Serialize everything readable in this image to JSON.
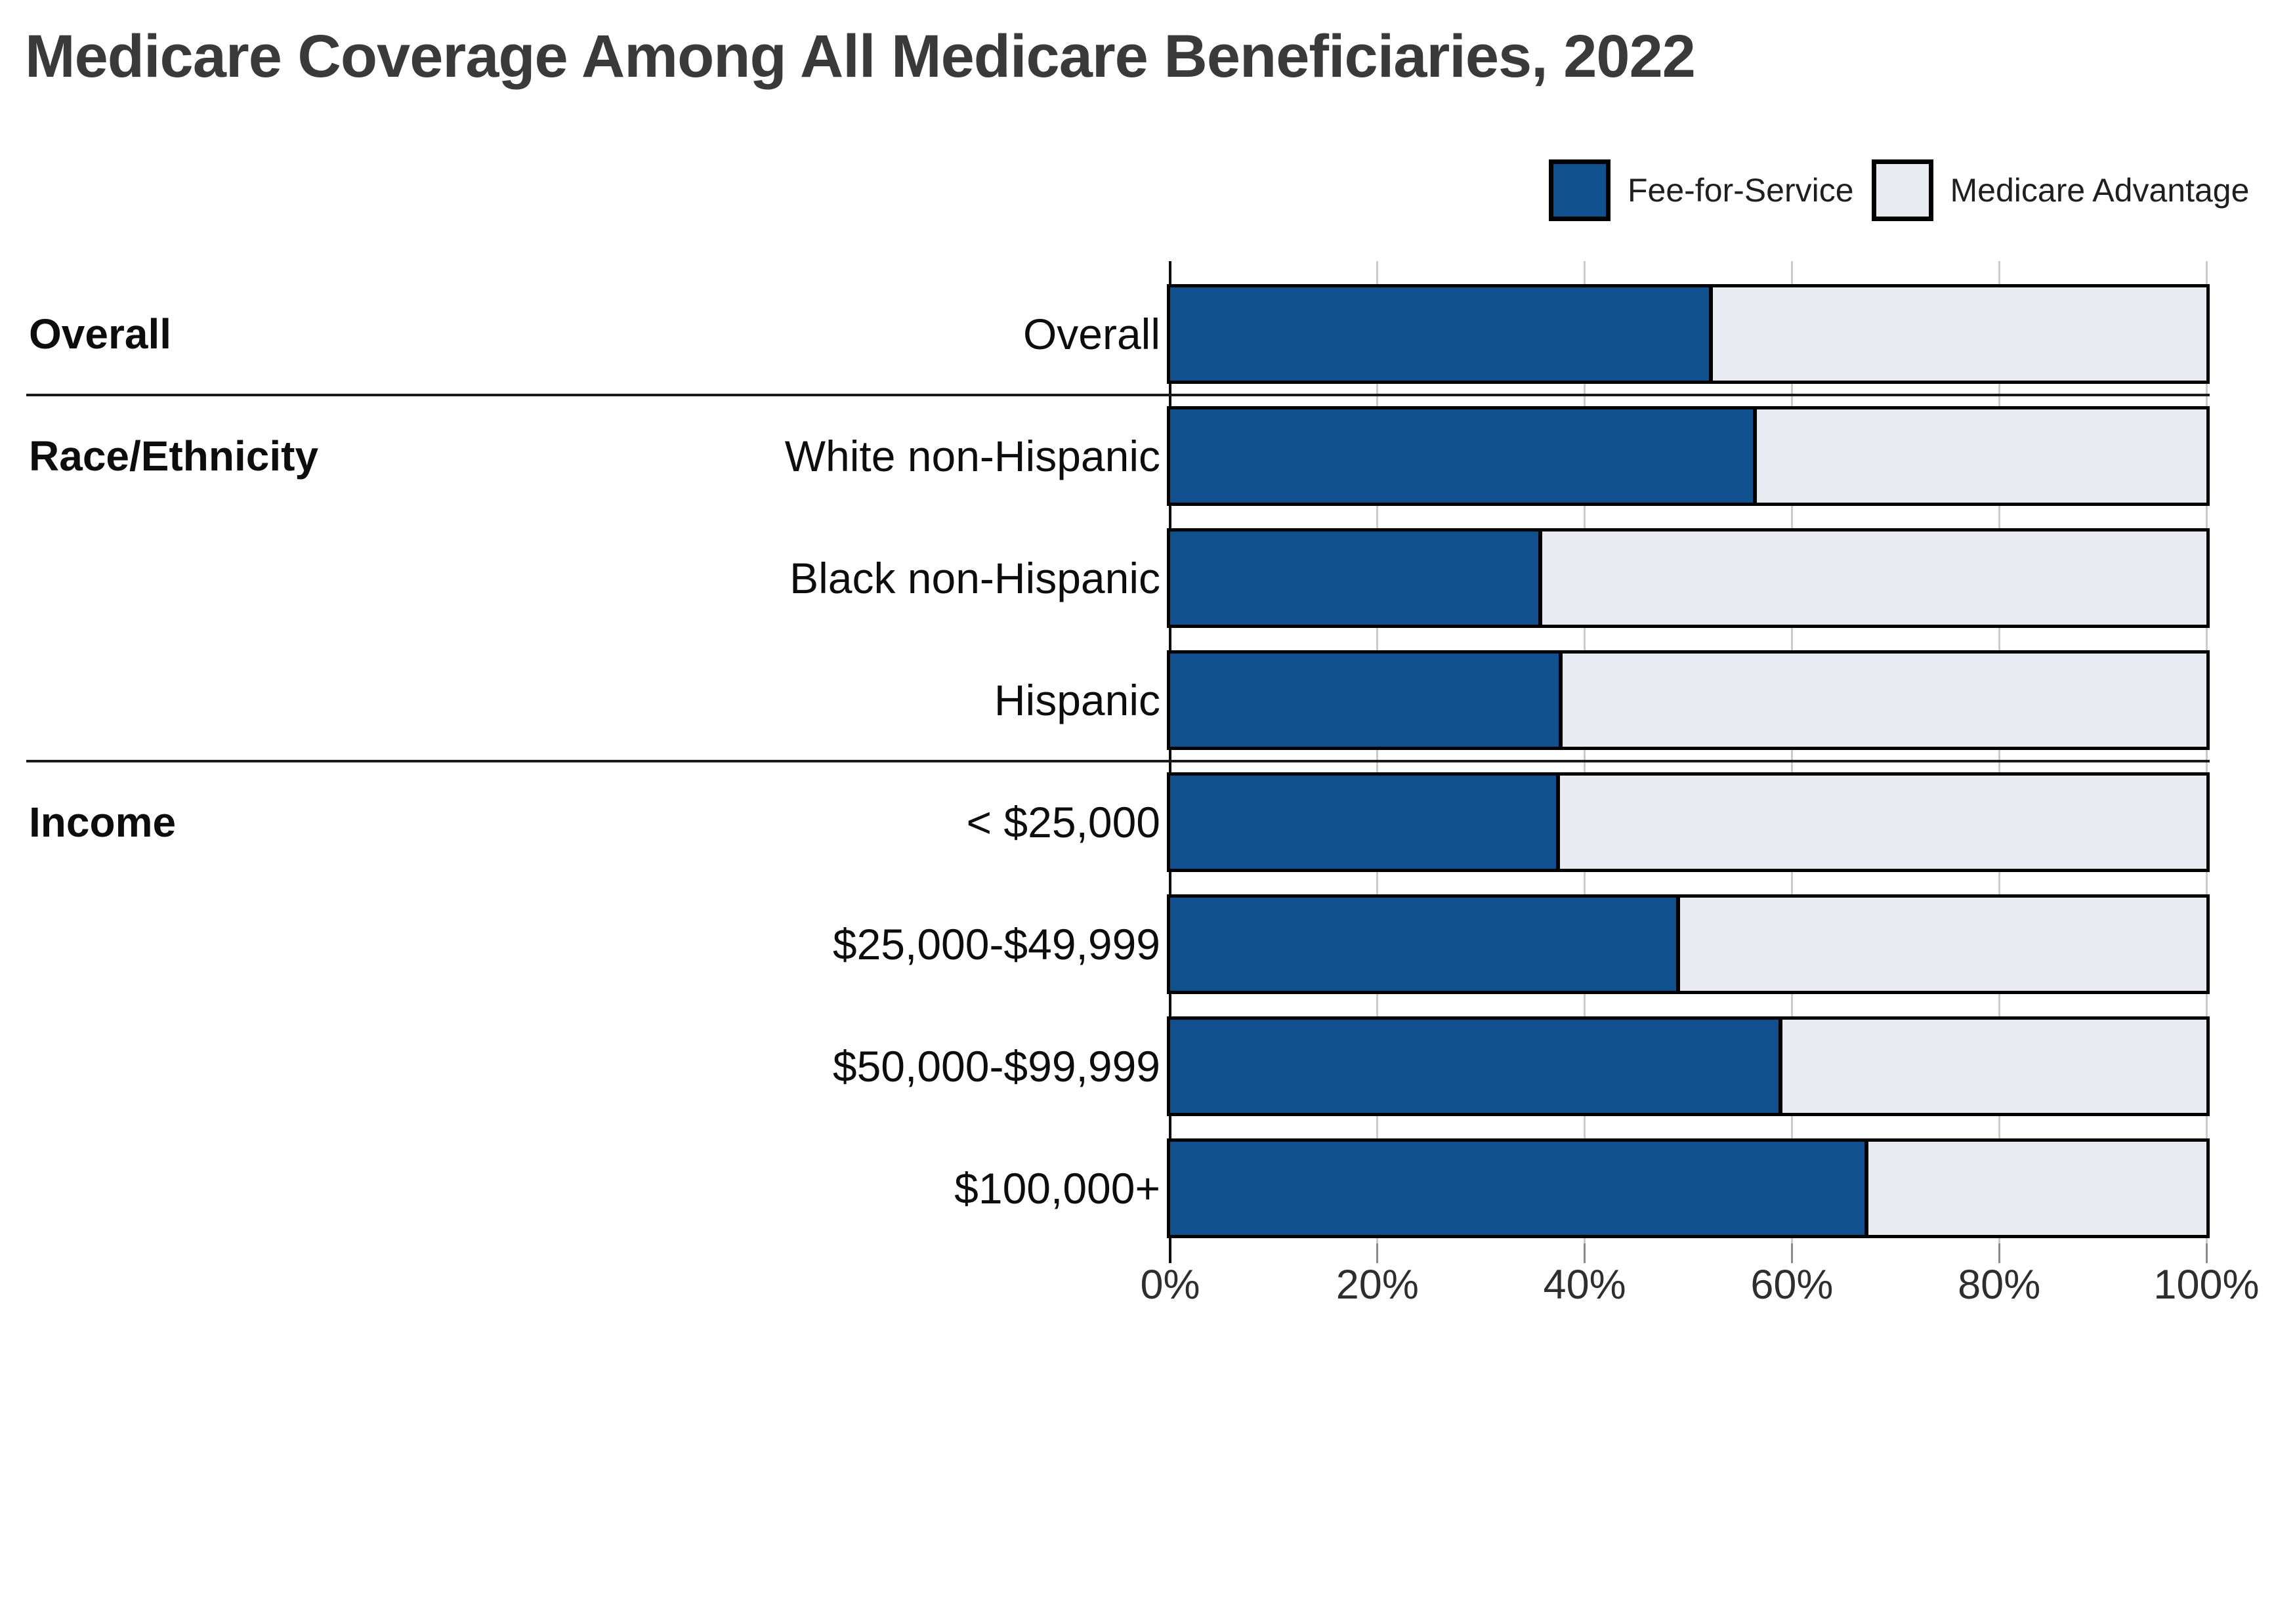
{
  "title": "Medicare Coverage Among All Medicare Beneficiaries, 2022",
  "legend": [
    {
      "label": "Fee-for-Service",
      "color": "#10508F"
    },
    {
      "label": "Medicare Advantage",
      "color": "#E8EBF2"
    }
  ],
  "colors": {
    "fee_for_service": "#10508F",
    "medicare_advantage": "#E8EBF2",
    "bar_border": "#000000",
    "gridline": "#CBCBCB",
    "tick": "#8A8A8A",
    "axis": "#0D0D0D",
    "title_text": "#3A3A3A",
    "label_text": "#0D0D0D"
  },
  "chart_data": {
    "type": "bar",
    "orientation": "horizontal",
    "stacked": true,
    "unit": "percent",
    "title": "Medicare Coverage Among All Medicare Beneficiaries, 2022",
    "xlabel": "",
    "ylabel": "",
    "xlim": [
      0,
      100
    ],
    "x_ticks": [
      {
        "value": 0,
        "label": "0%"
      },
      {
        "value": 20,
        "label": "20%"
      },
      {
        "value": 40,
        "label": "40%"
      },
      {
        "value": 60,
        "label": "60%"
      },
      {
        "value": 80,
        "label": "80%"
      },
      {
        "value": 100,
        "label": "100%"
      }
    ],
    "legend_position": "top-right",
    "grid": true,
    "categories": [
      "Overall",
      "White non-Hispanic",
      "Black non-Hispanic",
      "Hispanic",
      "< $25,000",
      "$25,000-$49,999",
      "$50,000-$99,999",
      "$100,000+"
    ],
    "series": [
      {
        "name": "Fee-for-Service",
        "values": [
          52.4,
          56.6,
          35.9,
          37.9,
          37.6,
          49.2,
          59.1,
          67.4
        ]
      },
      {
        "name": "Medicare Advantage",
        "values": [
          47.6,
          43.4,
          64.1,
          62.1,
          62.4,
          50.8,
          40.9,
          32.6
        ]
      }
    ],
    "groups": [
      {
        "label": "Overall",
        "rows": [
          {
            "label": "Overall",
            "fee_for_service": 52.4,
            "medicare_advantage": 47.6
          }
        ]
      },
      {
        "label": "Race/Ethnicity",
        "rows": [
          {
            "label": "White non-Hispanic",
            "fee_for_service": 56.6,
            "medicare_advantage": 43.4
          },
          {
            "label": "Black non-Hispanic",
            "fee_for_service": 35.9,
            "medicare_advantage": 64.1
          },
          {
            "label": "Hispanic",
            "fee_for_service": 37.9,
            "medicare_advantage": 62.1
          }
        ]
      },
      {
        "label": "Income",
        "rows": [
          {
            "label": "< $25,000",
            "fee_for_service": 37.6,
            "medicare_advantage": 62.4
          },
          {
            "label": "$25,000-$49,999",
            "fee_for_service": 49.2,
            "medicare_advantage": 50.8
          },
          {
            "label": "$50,000-$99,999",
            "fee_for_service": 59.1,
            "medicare_advantage": 40.9
          },
          {
            "label": "$100,000+",
            "fee_for_service": 67.4,
            "medicare_advantage": 32.6
          }
        ]
      }
    ]
  }
}
